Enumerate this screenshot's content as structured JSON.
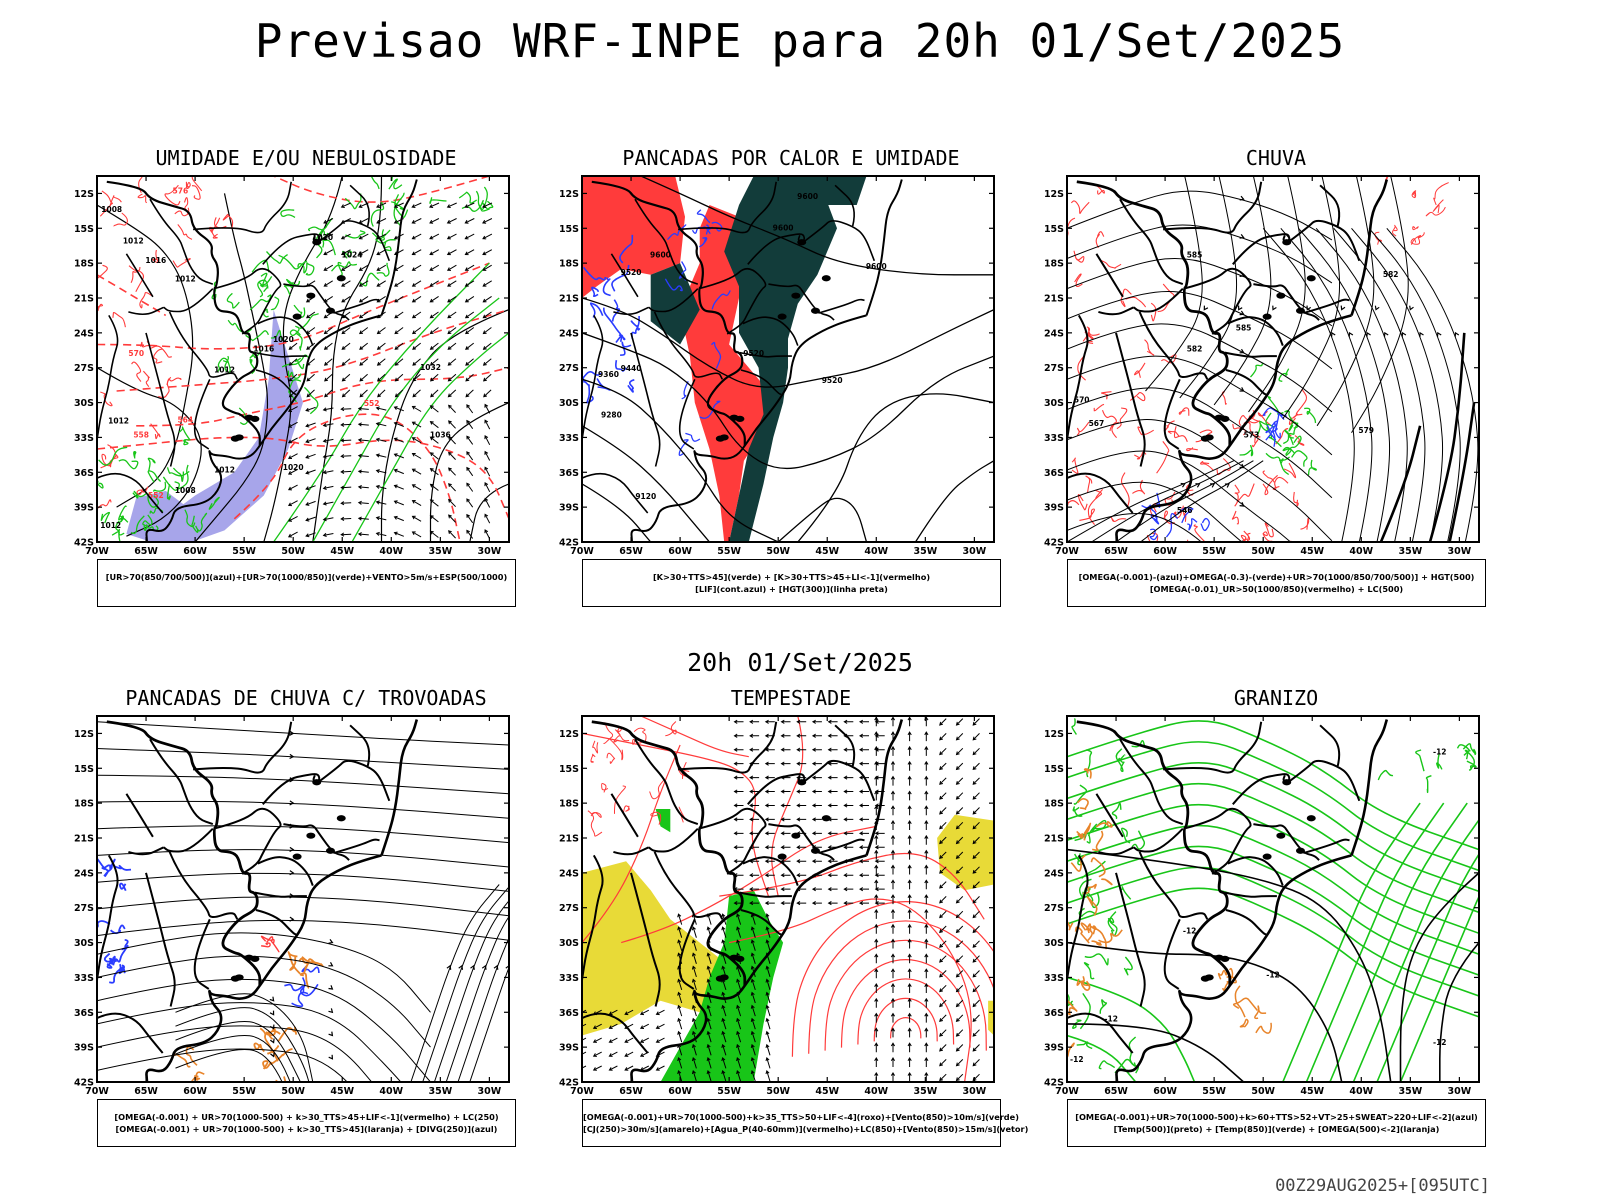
{
  "title": "Previsao WRF-INPE  para 20h 01/Set/2025",
  "subtitle": "20h 01/Set/2025",
  "footer": "00Z29AUG2025+[095UTC]",
  "lat_ticks": [
    "12S",
    "15S",
    "18S",
    "21S",
    "24S",
    "27S",
    "30S",
    "33S",
    "36S",
    "39S",
    "42S"
  ],
  "lon_ticks": [
    "70W",
    "65W",
    "60W",
    "55W",
    "50W",
    "45W",
    "40W",
    "35W",
    "30W"
  ],
  "panels": [
    {
      "title": "UMIDADE E/OU NEBULOSIDADE",
      "legend": [
        "[UR>70(850/700/500)](azul)+[UR>70(1000/850)](verde)+VENTO>5m/s+ESP(500/1000)"
      ],
      "labels": [
        "1008",
        "1012",
        "1012",
        "1016",
        "1012",
        "1020",
        "1024",
        "1020",
        "1016",
        "1012",
        "1032",
        "1036",
        "1020",
        "1012",
        "1008",
        "1012",
        "576",
        "570",
        "564",
        "558",
        "552",
        "552"
      ]
    },
    {
      "title": "PANCADAS POR CALOR E UMIDADE",
      "legend": [
        "[K>30+TTS>45](verde) + [K>30+TTS>45+LI<-1](vermelho)",
        "[LIF](cont.azul) + [HGT(300)](linha preta)"
      ],
      "labels": [
        "9600",
        "9600",
        "9600",
        "9600",
        "9520",
        "9520",
        "9440",
        "9360",
        "9280",
        "9520",
        "9120"
      ]
    },
    {
      "title": "CHUVA",
      "legend": [
        "[OMEGA(-0.001)-(azul)+OMEGA(-0.3)-(verde)+UR>70(1000/850/700/500)] + HGT(500)",
        "[OMEGA(-0.01)_UR>50(1000/850)(vermelho) + LC(500)"
      ]
    },
    {
      "title": "PANCADAS DE CHUVA C/ TROVOADAS",
      "legend": [
        "[OMEGA(-0.001) + UR>70(1000-500) + k>30_TTS>45+LIF<-1](vermelho) + LC(250)",
        "[OMEGA(-0.001) + UR>70(1000-500) + k>30_TTS>45](laranja) + [DIVG(250)](azul)"
      ]
    },
    {
      "title": "TEMPESTADE",
      "legend": [
        "[OMEGA(-0.001)+UR>70(1000-500)+k>35_TTS>50+LIF<-4](roxo)+[Vento(850)>10m/s](verde)",
        "[CJ(250)>30m/s](amarelo)+[Agua_P(40-60mm)](vermelho)+LC(850)+[Vento(850)>15m/s](vetor)"
      ]
    },
    {
      "title": "GRANIZO",
      "legend": [
        "[OMEGA(-0.001)+UR>70(1000-500)+k>60+TTS>52+VT>25+SWEAT>220+LIF<-2](azul)",
        "[Temp(500)](preto) + [Temp(850)](verde) + [OMEGA(500)<-2](laranja)"
      ],
      "labels": [
        "-12",
        "-12",
        "-12",
        "-12",
        "-12",
        "-12"
      ]
    }
  ],
  "colors": {
    "red": "#ff3b3b",
    "green": "#18c518",
    "blue": "#2a3cff",
    "lavender": "#a7a5ea",
    "darkteal": "#123c3a",
    "yellow": "#e8da37",
    "orange": "#e8842a",
    "black": "#000000"
  }
}
